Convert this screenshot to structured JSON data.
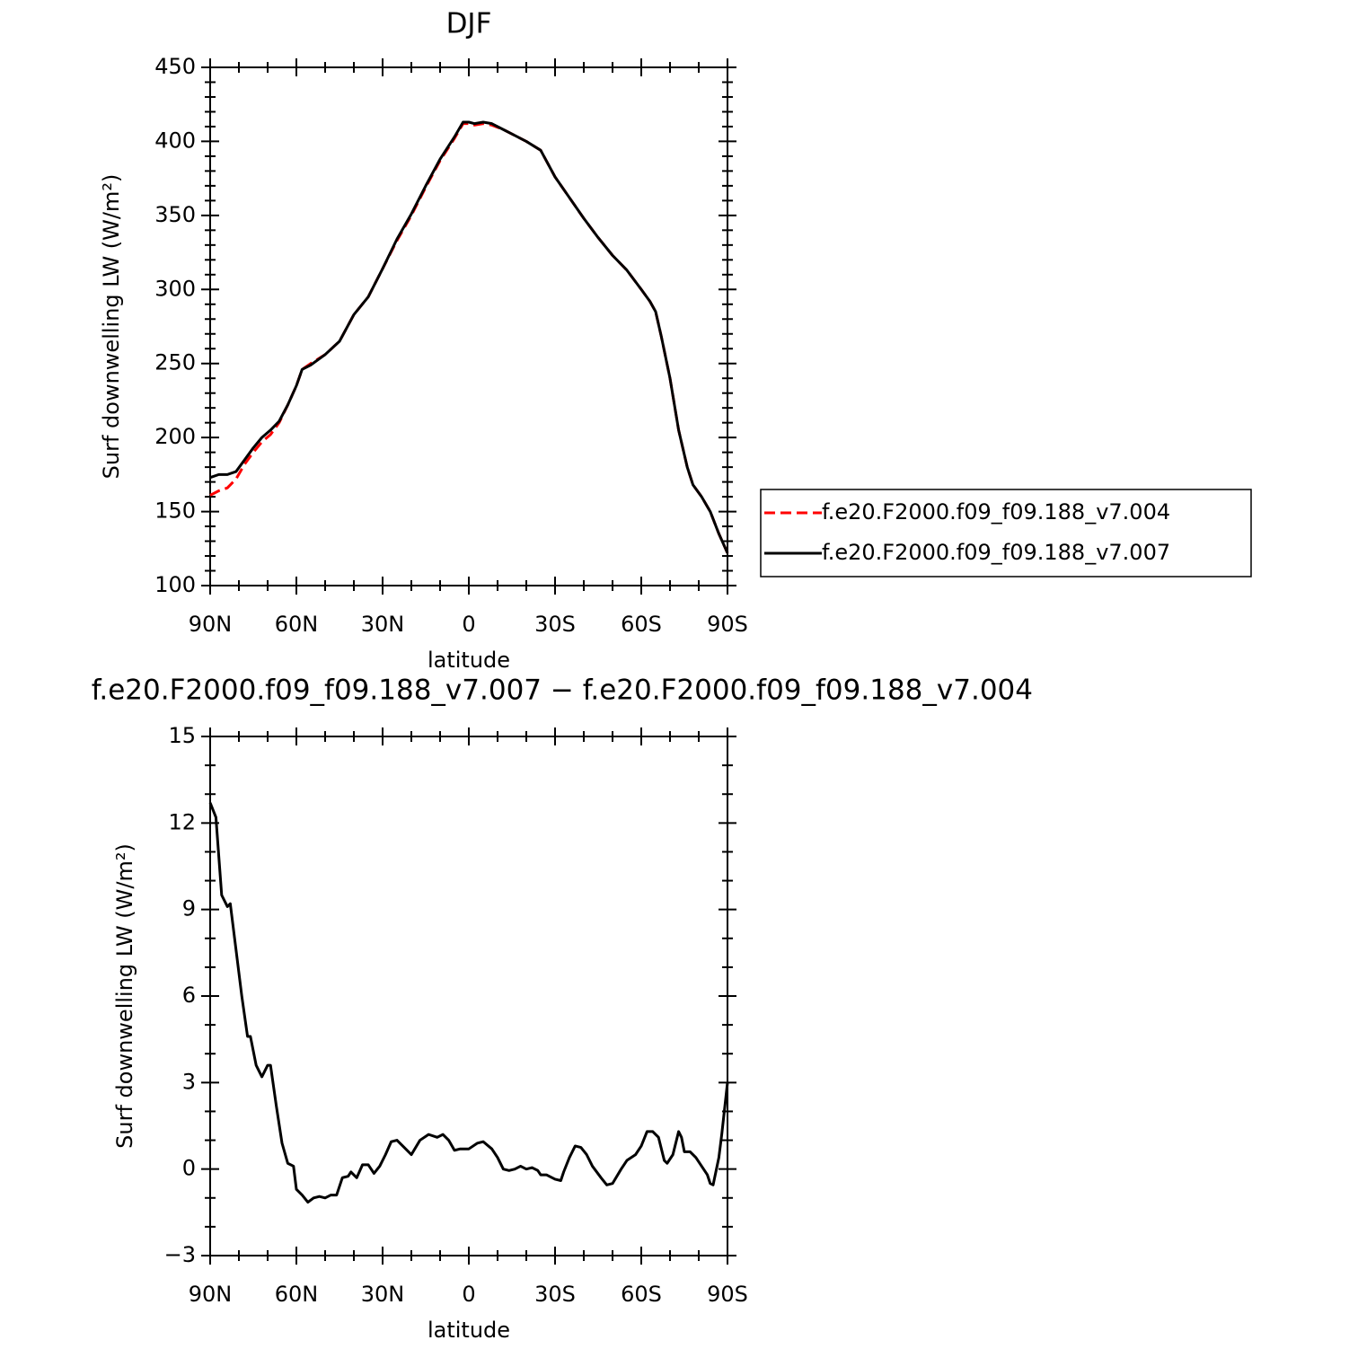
{
  "chart_data": [
    {
      "type": "line",
      "title": "DJF",
      "xlabel": "latitude",
      "ylabel": "Surf downwelling LW (W/m²)",
      "xlim": [
        90,
        -90
      ],
      "xticks": [
        {
          "value": 90,
          "label": "90N"
        },
        {
          "value": 60,
          "label": "60N"
        },
        {
          "value": 30,
          "label": "30N"
        },
        0,
        {
          "value": -30,
          "label": "30S"
        },
        {
          "value": -60,
          "label": "60S"
        },
        {
          "value": -90,
          "label": "90S"
        }
      ],
      "ylim": [
        100,
        450
      ],
      "yticks": [
        100,
        150,
        200,
        250,
        300,
        350,
        400,
        450
      ],
      "x_minor_divisions": 3,
      "y_minor_divisions": 5,
      "legend": "right",
      "x": [
        90,
        87,
        84,
        81,
        78,
        75,
        72,
        69,
        66,
        63,
        60,
        58,
        55,
        50,
        45,
        40,
        35,
        30,
        25,
        20,
        15,
        10,
        5,
        2,
        0,
        -2,
        -5,
        -8,
        -12,
        -16,
        -20,
        -25,
        -30,
        -35,
        -40,
        -45,
        -50,
        -55,
        -60,
        -63,
        -65,
        -67,
        -70,
        -73,
        -76,
        -78,
        -81,
        -84,
        -87,
        -90
      ],
      "series": [
        {
          "name": "f.e20.F2000.f09_f09.188_v7.004",
          "color": "#ff0000",
          "dash": true,
          "values": [
            161,
            164,
            166,
            172,
            182,
            190,
            197,
            202,
            210,
            222,
            235,
            246,
            250,
            256,
            265,
            283,
            295,
            314,
            333,
            350,
            369,
            387,
            402,
            412,
            412,
            411,
            412,
            411,
            408,
            404,
            400,
            394,
            376,
            362,
            348,
            335,
            323,
            313,
            300,
            292,
            285,
            268,
            240,
            205,
            180,
            168,
            160,
            150,
            135,
            122
          ]
        },
        {
          "name": "f.e20.F2000.f09_f09.188_v7.007",
          "color": "#000000",
          "dash": false,
          "values": [
            173,
            175,
            175,
            177,
            185,
            193,
            200,
            205,
            211,
            222,
            235,
            246,
            249,
            256,
            265,
            283,
            295,
            314,
            334,
            351,
            370,
            388,
            403,
            413,
            413,
            412,
            413,
            412,
            408,
            404,
            400,
            394,
            376,
            362,
            348,
            335,
            323,
            313,
            300,
            292,
            285,
            268,
            240,
            205,
            180,
            168,
            160,
            150,
            135,
            122
          ]
        }
      ]
    },
    {
      "type": "line",
      "title": "f.e20.F2000.f09_f09.188_v7.007 − f.e20.F2000.f09_f09.188_v7.004",
      "xlabel": "latitude",
      "ylabel": "Surf downwelling LW (W/m²)",
      "xlim": [
        90,
        -90
      ],
      "xticks": [
        {
          "value": 90,
          "label": "90N"
        },
        {
          "value": 60,
          "label": "60N"
        },
        {
          "value": 30,
          "label": "30N"
        },
        0,
        {
          "value": -30,
          "label": "30S"
        },
        {
          "value": -60,
          "label": "60S"
        },
        {
          "value": -90,
          "label": "90S"
        }
      ],
      "ylim": [
        -3,
        15
      ],
      "yticks": [
        {
          "value": -3,
          "label": "−3"
        },
        0,
        3,
        6,
        9,
        12,
        15
      ],
      "x_minor_divisions": 3,
      "y_minor_divisions": 3,
      "x": [
        90,
        88,
        86,
        84,
        83,
        81,
        79,
        77,
        76,
        74,
        72,
        70,
        69,
        67,
        65,
        63,
        61,
        60,
        58,
        56,
        54,
        52,
        50,
        48,
        46,
        44,
        42,
        41,
        39,
        37,
        35,
        33,
        31,
        29,
        27,
        25,
        23,
        20,
        17,
        14,
        11,
        9,
        7,
        5,
        3,
        0,
        -3,
        -5,
        -8,
        -10,
        -12,
        -14,
        -16,
        -18,
        -20,
        -22,
        -24,
        -25,
        -27,
        -30,
        -32,
        -33,
        -35,
        -37,
        -39,
        -41,
        -43,
        -46,
        -48,
        -50,
        -53,
        -55,
        -58,
        -60,
        -62,
        -64,
        -66,
        -68,
        -69,
        -71,
        -73,
        -74,
        -75,
        -77,
        -79,
        -81,
        -83,
        -84,
        -85,
        -87,
        -88,
        -90
      ],
      "series": [
        {
          "name": "difference",
          "color": "#000000",
          "dash": false,
          "values": [
            12.7,
            12.2,
            9.5,
            9.1,
            9.2,
            7.6,
            6,
            4.6,
            4.6,
            3.6,
            3.2,
            3.6,
            3.6,
            2.2,
            0.9,
            0.2,
            0.1,
            -0.7,
            -0.9,
            -1.15,
            -1.0,
            -0.95,
            -1.0,
            -0.9,
            -0.9,
            -0.3,
            -0.25,
            -0.1,
            -0.3,
            0.15,
            0.15,
            -0.15,
            0.1,
            0.5,
            0.95,
            1.0,
            0.8,
            0.5,
            1.0,
            1.2,
            1.1,
            1.2,
            1.0,
            0.65,
            0.7,
            0.7,
            0.9,
            0.95,
            0.7,
            0.4,
            0.0,
            -0.05,
            0.0,
            0.1,
            0.0,
            0.05,
            -0.05,
            -0.2,
            -0.2,
            -0.35,
            -0.4,
            -0.1,
            0.4,
            0.8,
            0.75,
            0.5,
            0.1,
            -0.3,
            -0.55,
            -0.5,
            0.0,
            0.3,
            0.5,
            0.8,
            1.3,
            1.3,
            1.1,
            0.3,
            0.2,
            0.5,
            1.3,
            1.1,
            0.6,
            0.6,
            0.4,
            0.1,
            -0.2,
            -0.5,
            -0.55,
            0.4,
            1.2,
            3.0
          ]
        }
      ]
    }
  ]
}
